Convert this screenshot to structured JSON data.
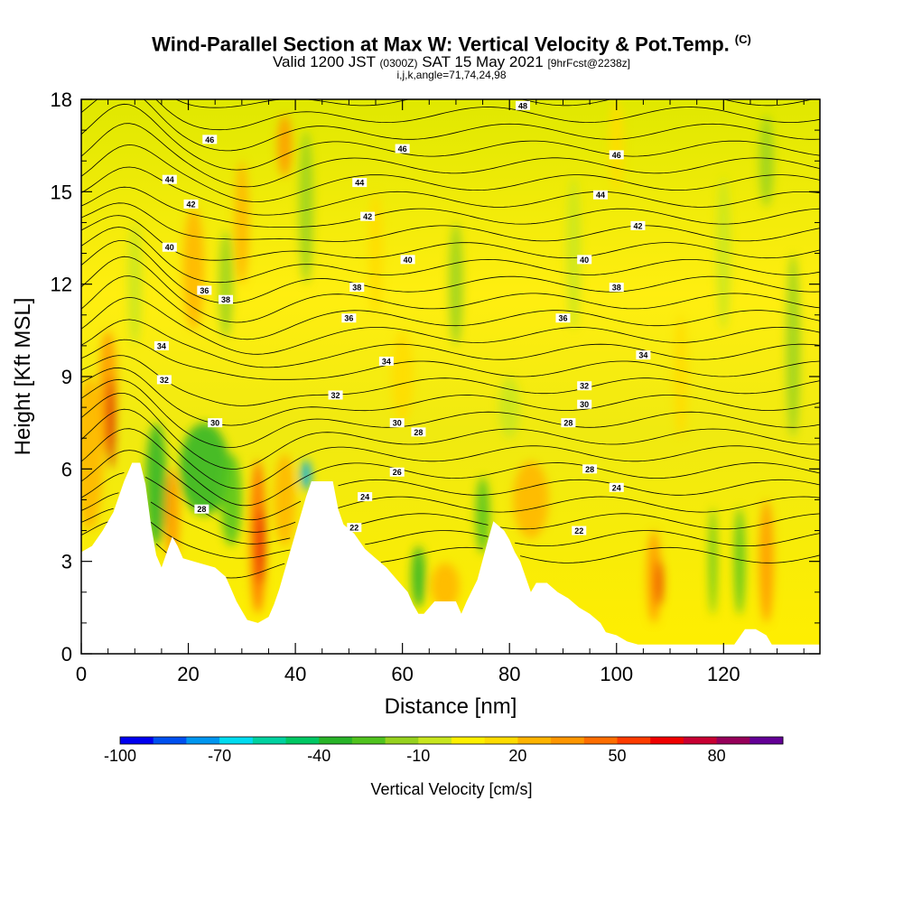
{
  "title": {
    "main": "Wind-Parallel Section at Max W: Vertical Velocity & Pot.Temp.",
    "copyright": "(C)",
    "valid_prefix": "Valid 1200 JST",
    "valid_utc": "(0300Z)",
    "valid_date": "SAT 15 May 2021",
    "forecast": "[9hrFcst@2238z]",
    "indices": "i,j,k,angle=71,74,24,98"
  },
  "chart_data": {
    "type": "heatmap",
    "xlabel": "Distance [nm]",
    "ylabel": "Height [Kft MSL]",
    "xlim": [
      0,
      138
    ],
    "ylim": [
      0,
      18
    ],
    "x_ticks": [
      0,
      20,
      40,
      60,
      80,
      100,
      120
    ],
    "y_ticks": [
      0,
      3,
      6,
      9,
      12,
      15,
      18
    ],
    "colorbar": {
      "label": "Vertical Velocity [cm/s]",
      "min": -100,
      "max": 100,
      "step": 10,
      "tick_values": [
        -100,
        -70,
        -40,
        -10,
        20,
        50,
        80
      ],
      "colors": [
        "#0000f0",
        "#0050f0",
        "#0096f0",
        "#00dcf0",
        "#00d2a0",
        "#00c864",
        "#28b428",
        "#50c31e",
        "#96d21e",
        "#c8e61e",
        "#fff000",
        "#ffdc00",
        "#ffb400",
        "#ff9600",
        "#ff6e00",
        "#ff3c00",
        "#f00000",
        "#c80032",
        "#96005a",
        "#640096"
      ]
    },
    "terrain": [
      [
        0,
        3.3
      ],
      [
        2,
        3.5
      ],
      [
        4,
        4.0
      ],
      [
        6,
        4.6
      ],
      [
        8,
        5.6
      ],
      [
        9.5,
        6.2
      ],
      [
        11,
        6.2
      ],
      [
        12,
        5.5
      ],
      [
        13,
        4.2
      ],
      [
        14,
        3.2
      ],
      [
        15,
        2.8
      ],
      [
        16,
        3.3
      ],
      [
        17,
        3.8
      ],
      [
        18,
        3.5
      ],
      [
        19,
        3.1
      ],
      [
        21,
        3.0
      ],
      [
        23,
        2.9
      ],
      [
        25,
        2.8
      ],
      [
        27,
        2.5
      ],
      [
        28,
        2.1
      ],
      [
        29,
        1.7
      ],
      [
        30,
        1.4
      ],
      [
        31,
        1.1
      ],
      [
        33,
        1.0
      ],
      [
        35,
        1.2
      ],
      [
        36,
        1.6
      ],
      [
        37,
        2.1
      ],
      [
        38,
        2.7
      ],
      [
        39,
        3.3
      ],
      [
        40,
        3.9
      ],
      [
        41,
        4.5
      ],
      [
        42,
        5.1
      ],
      [
        43,
        5.6
      ],
      [
        45,
        5.6
      ],
      [
        47,
        5.6
      ],
      [
        48,
        4.7
      ],
      [
        49,
        4.2
      ],
      [
        51,
        3.9
      ],
      [
        53,
        3.4
      ],
      [
        55,
        3.1
      ],
      [
        57,
        2.8
      ],
      [
        59,
        2.4
      ],
      [
        61,
        2.0
      ],
      [
        62,
        1.6
      ],
      [
        63,
        1.3
      ],
      [
        64,
        1.3
      ],
      [
        66,
        1.7
      ],
      [
        70,
        1.7
      ],
      [
        71,
        1.3
      ],
      [
        72,
        1.7
      ],
      [
        74,
        2.4
      ],
      [
        76,
        3.7
      ],
      [
        77,
        4.3
      ],
      [
        79,
        4.0
      ],
      [
        80,
        3.7
      ],
      [
        81,
        3.3
      ],
      [
        82,
        3.0
      ],
      [
        83,
        2.5
      ],
      [
        84,
        2.0
      ],
      [
        85,
        2.3
      ],
      [
        87,
        2.3
      ],
      [
        89,
        2.0
      ],
      [
        91,
        1.8
      ],
      [
        93,
        1.5
      ],
      [
        95,
        1.3
      ],
      [
        97,
        1.0
      ],
      [
        98,
        0.7
      ],
      [
        100,
        0.6
      ],
      [
        102,
        0.4
      ],
      [
        104,
        0.3
      ],
      [
        110,
        0.3
      ],
      [
        116,
        0.3
      ],
      [
        122,
        0.3
      ],
      [
        124,
        0.8
      ],
      [
        126,
        0.8
      ],
      [
        128,
        0.6
      ],
      [
        129,
        0.3
      ],
      [
        133,
        0.3
      ],
      [
        138,
        0.3
      ]
    ],
    "isentropes": {
      "theta_label_values": [
        22,
        24,
        26,
        28,
        30,
        32,
        34,
        36,
        38,
        40,
        42,
        44,
        46,
        48
      ],
      "labels": [
        {
          "theta": 28,
          "x": 22.5,
          "y": 4.7
        },
        {
          "theta": 22,
          "x": 51,
          "y": 4.1
        },
        {
          "theta": 24,
          "x": 53,
          "y": 5.1
        },
        {
          "theta": 26,
          "x": 59,
          "y": 5.9
        },
        {
          "theta": 28,
          "x": 63,
          "y": 7.2
        },
        {
          "theta": 30,
          "x": 59,
          "y": 7.5
        },
        {
          "theta": 30,
          "x": 25,
          "y": 7.5
        },
        {
          "theta": 32,
          "x": 15.5,
          "y": 8.9
        },
        {
          "theta": 32,
          "x": 47.5,
          "y": 8.4
        },
        {
          "theta": 34,
          "x": 15,
          "y": 10.0
        },
        {
          "theta": 34,
          "x": 57,
          "y": 9.5
        },
        {
          "theta": 36,
          "x": 50,
          "y": 10.9
        },
        {
          "theta": 38,
          "x": 51.5,
          "y": 11.9
        },
        {
          "theta": 36,
          "x": 23,
          "y": 11.8
        },
        {
          "theta": 38,
          "x": 27,
          "y": 11.5
        },
        {
          "theta": 40,
          "x": 16.5,
          "y": 13.2
        },
        {
          "theta": 40,
          "x": 61,
          "y": 12.8
        },
        {
          "theta": 42,
          "x": 20.5,
          "y": 14.6
        },
        {
          "theta": 42,
          "x": 53.5,
          "y": 14.2
        },
        {
          "theta": 44,
          "x": 16.5,
          "y": 15.4
        },
        {
          "theta": 44,
          "x": 52,
          "y": 15.3
        },
        {
          "theta": 46,
          "x": 24,
          "y": 16.7
        },
        {
          "theta": 46,
          "x": 60,
          "y": 16.4
        },
        {
          "theta": 48,
          "x": 82.5,
          "y": 17.8
        },
        {
          "theta": 46,
          "x": 100,
          "y": 16.2
        },
        {
          "theta": 44,
          "x": 97,
          "y": 14.9
        },
        {
          "theta": 42,
          "x": 104,
          "y": 13.9
        },
        {
          "theta": 40,
          "x": 94,
          "y": 12.8
        },
        {
          "theta": 38,
          "x": 100,
          "y": 11.9
        },
        {
          "theta": 36,
          "x": 90,
          "y": 10.9
        },
        {
          "theta": 34,
          "x": 105,
          "y": 9.7
        },
        {
          "theta": 32,
          "x": 94,
          "y": 8.7
        },
        {
          "theta": 30,
          "x": 94,
          "y": 8.1
        },
        {
          "theta": 28,
          "x": 91,
          "y": 7.5
        },
        {
          "theta": 28,
          "x": 95,
          "y": 6.0
        },
        {
          "theta": 24,
          "x": 100,
          "y": 5.4
        },
        {
          "theta": 22,
          "x": 93,
          "y": 4.0
        }
      ]
    }
  }
}
